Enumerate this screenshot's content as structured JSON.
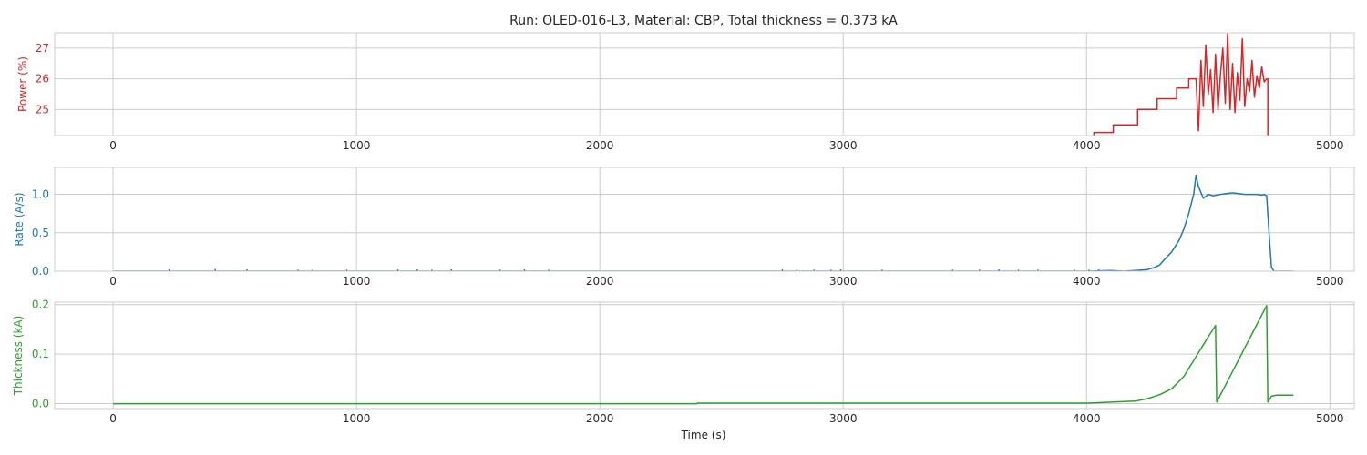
{
  "chart_data": {
    "type": "line",
    "title": "Run: OLED-016-L3, Material: CBP, Total thickness = 0.373 kA",
    "xlabel": "Time (s)",
    "xlim": [
      -240,
      5100
    ],
    "x_ticks": [
      0,
      1000,
      2000,
      3000,
      4000,
      5000
    ],
    "grid": true,
    "panels": [
      {
        "name": "power",
        "ylabel": "Power (%)",
        "color": "#d62728",
        "ylim": [
          24.15,
          27.5
        ],
        "y_ticks": [
          25,
          26,
          27
        ],
        "y_tick_labels": [
          "25",
          "26",
          "27"
        ],
        "series": [
          {
            "x": [
              4030,
              4030,
              4110,
              4110,
              4210,
              4210,
              4290,
              4290,
              4370,
              4370,
              4420,
              4420,
              4450,
              4460,
              4470,
              4480,
              4490,
              4500,
              4510,
              4520,
              4530,
              4540,
              4550,
              4560,
              4570,
              4580,
              4590,
              4600,
              4610,
              4620,
              4630,
              4640,
              4650,
              4660,
              4670,
              4680,
              4690,
              4700,
              4710,
              4720,
              4730,
              4740,
              4745,
              4745
            ],
            "y": [
              24.15,
              24.25,
              24.25,
              24.5,
              24.5,
              25.0,
              25.0,
              25.35,
              25.35,
              25.7,
              25.7,
              26.0,
              26.0,
              24.3,
              26.6,
              25.1,
              27.1,
              25.5,
              26.3,
              24.9,
              26.8,
              25.0,
              26.1,
              27.0,
              25.2,
              27.5,
              25.0,
              26.5,
              24.9,
              26.2,
              25.3,
              27.3,
              25.1,
              26.0,
              25.6,
              26.6,
              25.4,
              26.1,
              25.7,
              26.4,
              25.9,
              26.0,
              26.0,
              24.15
            ]
          }
        ]
      },
      {
        "name": "rate",
        "ylabel": "Rate (A/s)",
        "color": "#1f77b4",
        "ylim": [
          0,
          1.35
        ],
        "y_ticks": [
          0,
          0.5,
          1.0
        ],
        "y_tick_labels": [
          "0.0",
          "0.5",
          "1.0"
        ],
        "series": [
          {
            "x": [
              0,
              4000,
              4100,
              4150,
              4200,
              4250,
              4280,
              4300,
              4320,
              4350,
              4380,
              4400,
              4420,
              4440,
              4450,
              4460,
              4480,
              4500,
              4520,
              4550,
              4600,
              4650,
              4700,
              4720,
              4730,
              4740,
              4750,
              4760,
              4770,
              4800,
              4850
            ],
            "y": [
              0,
              0,
              0.01,
              0.0,
              0.01,
              0.02,
              0.05,
              0.08,
              0.15,
              0.25,
              0.4,
              0.55,
              0.75,
              1.0,
              1.25,
              1.1,
              0.95,
              1.0,
              0.98,
              1.0,
              1.02,
              1.0,
              1.0,
              0.99,
              1.0,
              0.98,
              0.5,
              0.05,
              0.0,
              0.0,
              0.0
            ]
          }
        ],
        "spikes": {
          "x": [
            230,
            420,
            550,
            760,
            820,
            960,
            1170,
            1250,
            1310,
            1390,
            1590,
            1690,
            1790,
            2750,
            2810,
            2880,
            2950,
            2990,
            3160,
            3450,
            3560,
            3640,
            3720,
            3800,
            3950,
            4010,
            4050
          ],
          "y": [
            0.025,
            0.03,
            0.025,
            0.02,
            0.02,
            0.02,
            0.025,
            0.025,
            0.02,
            0.025,
            0.02,
            0.025,
            0.02,
            0.025,
            0.02,
            0.02,
            0.02,
            0.025,
            0.02,
            0.02,
            0.02,
            0.025,
            0.02,
            0.02,
            0.02,
            0.02,
            0.025
          ]
        }
      },
      {
        "name": "thickness",
        "ylabel": "Thickness (kA)",
        "color": "#2ca02c",
        "ylim": [
          -0.01,
          0.205
        ],
        "y_ticks": [
          0,
          0.1,
          0.2
        ],
        "y_tick_labels": [
          "0.0",
          "0.1",
          "0.2"
        ],
        "series": [
          {
            "x": [
              0,
              2400,
              2401,
              4000,
              4050,
              4100,
              4200,
              4250,
              4300,
              4350,
              4400,
              4450,
              4500,
              4530,
              4535,
              4600,
              4700,
              4740,
              4745,
              4760,
              4780,
              4850
            ],
            "y": [
              0,
              0,
              0.001,
              0.001,
              0.002,
              0.003,
              0.005,
              0.01,
              0.018,
              0.03,
              0.055,
              0.095,
              0.135,
              0.158,
              0.003,
              0.065,
              0.16,
              0.198,
              0.003,
              0.015,
              0.017,
              0.017
            ]
          }
        ]
      }
    ]
  }
}
